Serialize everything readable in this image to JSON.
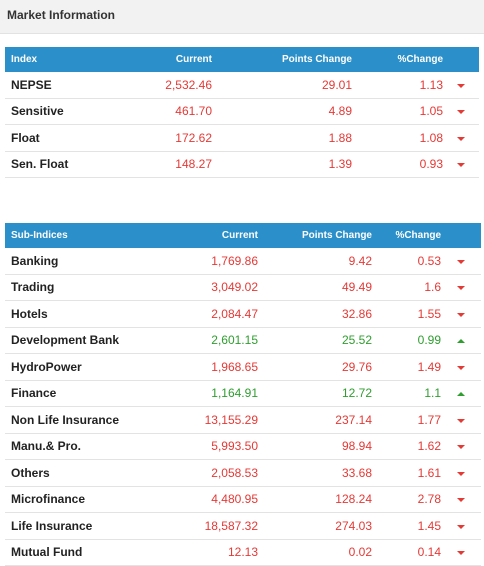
{
  "window": {
    "title": "Market Information"
  },
  "indices": {
    "headers": {
      "index": "Index",
      "current": "Current",
      "points_change": "Points Change",
      "pct_change": "%Change"
    },
    "rows": [
      {
        "name": "NEPSE",
        "current": "2,532.46",
        "points": "29.01",
        "pct": "1.13",
        "direction": "down"
      },
      {
        "name": "Sensitive",
        "current": "461.70",
        "points": "4.89",
        "pct": "1.05",
        "direction": "down"
      },
      {
        "name": "Float",
        "current": "172.62",
        "points": "1.88",
        "pct": "1.08",
        "direction": "down"
      },
      {
        "name": "Sen. Float",
        "current": "148.27",
        "points": "1.39",
        "pct": "0.93",
        "direction": "down"
      }
    ]
  },
  "sub_indices": {
    "headers": {
      "index": "Sub-Indices",
      "current": "Current",
      "points_change": "Points Change",
      "pct_change": "%Change"
    },
    "rows": [
      {
        "name": "Banking",
        "current": "1,769.86",
        "points": "9.42",
        "pct": "0.53",
        "direction": "down"
      },
      {
        "name": "Trading",
        "current": "3,049.02",
        "points": "49.49",
        "pct": "1.6",
        "direction": "down"
      },
      {
        "name": "Hotels",
        "current": "2,084.47",
        "points": "32.86",
        "pct": "1.55",
        "direction": "down"
      },
      {
        "name": "Development Bank",
        "current": "2,601.15",
        "points": "25.52",
        "pct": "0.99",
        "direction": "up"
      },
      {
        "name": "HydroPower",
        "current": "1,968.65",
        "points": "29.76",
        "pct": "1.49",
        "direction": "down"
      },
      {
        "name": "Finance",
        "current": "1,164.91",
        "points": "12.72",
        "pct": "1.1",
        "direction": "up"
      },
      {
        "name": "Non Life Insurance",
        "current": "13,155.29",
        "points": "237.14",
        "pct": "1.77",
        "direction": "down"
      },
      {
        "name": "Manu.& Pro.",
        "current": "5,993.50",
        "points": "98.94",
        "pct": "1.62",
        "direction": "down"
      },
      {
        "name": "Others",
        "current": "2,058.53",
        "points": "33.68",
        "pct": "1.61",
        "direction": "down"
      },
      {
        "name": "Microfinance",
        "current": "4,480.95",
        "points": "128.24",
        "pct": "2.78",
        "direction": "down"
      },
      {
        "name": "Life Insurance",
        "current": "18,587.32",
        "points": "274.03",
        "pct": "1.45",
        "direction": "down"
      },
      {
        "name": "Mutual Fund",
        "current": "12.13",
        "points": "0.02",
        "pct": "0.14",
        "direction": "down"
      }
    ]
  },
  "colors": {
    "header_bg": "#2b8fc9",
    "down": "#e53935",
    "up": "#2e9e2e"
  },
  "icons": {
    "down": "triangle-down-icon",
    "up": "triangle-up-icon"
  }
}
